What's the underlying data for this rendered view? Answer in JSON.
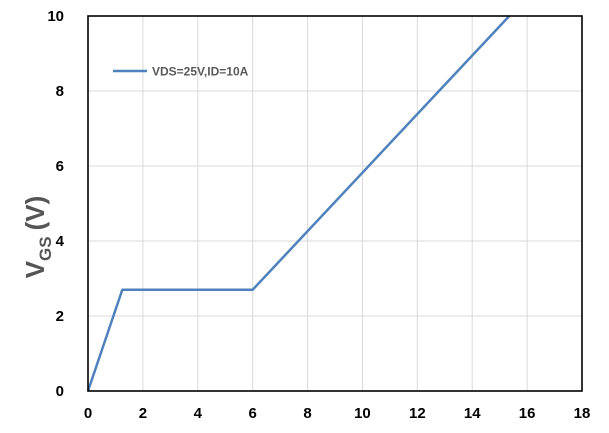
{
  "chart_data": {
    "type": "line",
    "title": "",
    "xlabel": "",
    "ylabel": {
      "main": "V",
      "subscript": "GS",
      "unit": "(V)"
    },
    "xlim": [
      0,
      18
    ],
    "ylim": [
      0,
      10
    ],
    "x_ticks": [
      0,
      2,
      4,
      6,
      8,
      10,
      12,
      14,
      16,
      18
    ],
    "y_ticks": [
      0,
      2,
      4,
      6,
      8,
      10
    ],
    "x_tick_labels": [
      "0",
      "2",
      "4",
      "6",
      "8",
      "10",
      "12",
      "14",
      "16",
      "18"
    ],
    "y_tick_labels": [
      "0",
      "2",
      "4",
      "6",
      "8",
      "10"
    ],
    "grid": true,
    "legend_position": "top-left",
    "series": [
      {
        "name": "VDS=25V,ID=10A",
        "color": "#4f81bd",
        "x": [
          0,
          1.25,
          6.0,
          15.35
        ],
        "y": [
          0,
          2.7,
          2.7,
          10.0
        ]
      }
    ]
  }
}
